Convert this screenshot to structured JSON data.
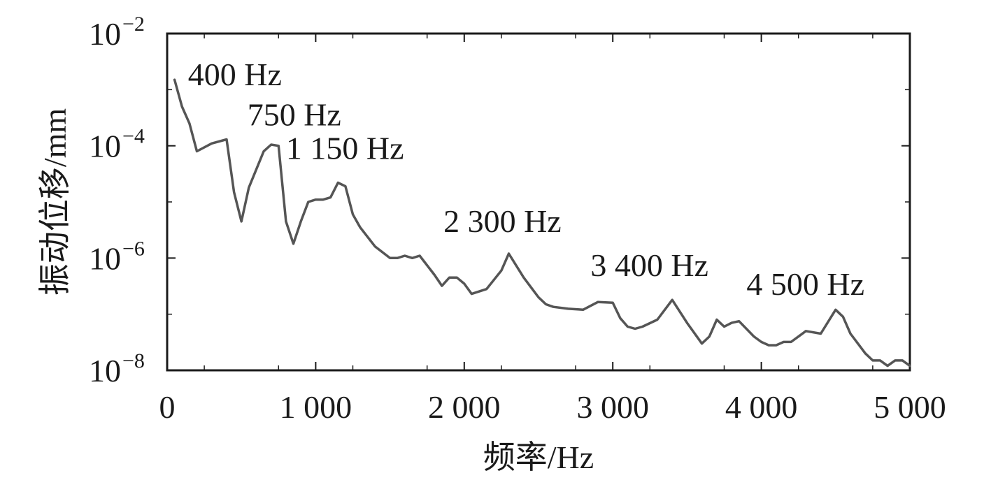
{
  "chart_data": {
    "type": "line",
    "title": "",
    "xlabel": "频率/Hz",
    "ylabel": "振动位移/mm",
    "xlim": [
      0,
      5000
    ],
    "ylim": [
      1e-08,
      0.01
    ],
    "yscale": "log",
    "grid": false,
    "x_ticks": [
      0,
      1000,
      2000,
      3000,
      4000,
      5000
    ],
    "x_tick_labels": [
      "0",
      "1 000",
      "2 000",
      "3 000",
      "4 000",
      "5 000"
    ],
    "y_ticks": [
      1e-08,
      1e-06,
      0.0001,
      0.01
    ],
    "y_tick_labels": [
      {
        "base": "10",
        "exp": "−8"
      },
      {
        "base": "10",
        "exp": "−6"
      },
      {
        "base": "10",
        "exp": "−4"
      },
      {
        "base": "10",
        "exp": "−2"
      }
    ],
    "series": [
      {
        "color": "#555555",
        "x": [
          50,
          100,
          150,
          200,
          300,
          400,
          450,
          500,
          550,
          650,
          700,
          750,
          800,
          850,
          900,
          950,
          1000,
          1050,
          1100,
          1150,
          1200,
          1250,
          1300,
          1400,
          1500,
          1550,
          1600,
          1650,
          1700,
          1800,
          1850,
          1900,
          1950,
          2000,
          2050,
          2150,
          2250,
          2300,
          2400,
          2500,
          2550,
          2600,
          2700,
          2800,
          2900,
          3000,
          3050,
          3100,
          3150,
          3200,
          3300,
          3400,
          3500,
          3600,
          3650,
          3700,
          3750,
          3800,
          3850,
          3950,
          4000,
          4050,
          4100,
          4150,
          4200,
          4300,
          4400,
          4500,
          4550,
          4600,
          4650,
          4700,
          4750,
          4800,
          4850,
          4900,
          4950,
          5000
        ],
        "y": [
          0.0015,
          0.0005,
          0.00025,
          8e-05,
          0.00011,
          0.00013,
          1.5e-05,
          4.5e-06,
          1.8e-05,
          8e-05,
          0.000105,
          0.0001,
          4.5e-06,
          1.8e-06,
          4.5e-06,
          1e-05,
          1.1e-05,
          1.1e-05,
          1.2e-05,
          2.2e-05,
          1.9e-05,
          6e-06,
          3.5e-06,
          1.6e-06,
          1e-06,
          1e-06,
          1.1e-06,
          1e-06,
          1.1e-06,
          5e-07,
          3.2e-07,
          4.5e-07,
          4.5e-07,
          3.5e-07,
          2.3e-07,
          2.8e-07,
          6e-07,
          1.2e-06,
          4.5e-07,
          2e-07,
          1.5e-07,
          1.35e-07,
          1.25e-07,
          1.2e-07,
          1.65e-07,
          1.6e-07,
          8.5e-08,
          6e-08,
          5.5e-08,
          6e-08,
          8e-08,
          1.8e-07,
          7e-08,
          3e-08,
          4e-08,
          8e-08,
          6e-08,
          7e-08,
          7.5e-08,
          4e-08,
          3.2e-08,
          2.8e-08,
          2.8e-08,
          3.2e-08,
          3.2e-08,
          5e-08,
          4.5e-08,
          1.2e-07,
          9e-08,
          4.5e-08,
          3e-08,
          2e-08,
          1.5e-08,
          1.5e-08,
          1.2e-08,
          1.5e-08,
          1.5e-08,
          1.2e-08
        ]
      }
    ],
    "annotations": [
      {
        "text": "400 Hz",
        "x": 140,
        "y": 0.0012
      },
      {
        "text": "750 Hz",
        "x": 540,
        "y": 0.00023
      },
      {
        "text": "1 150 Hz",
        "x": 800,
        "y": 5.8e-05
      },
      {
        "text": "2 300 Hz",
        "x": 1860,
        "y": 2.9e-06
      },
      {
        "text": "3 400 Hz",
        "x": 2850,
        "y": 4.8e-07
      },
      {
        "text": "4 500 Hz",
        "x": 3900,
        "y": 2.2e-07
      }
    ]
  }
}
